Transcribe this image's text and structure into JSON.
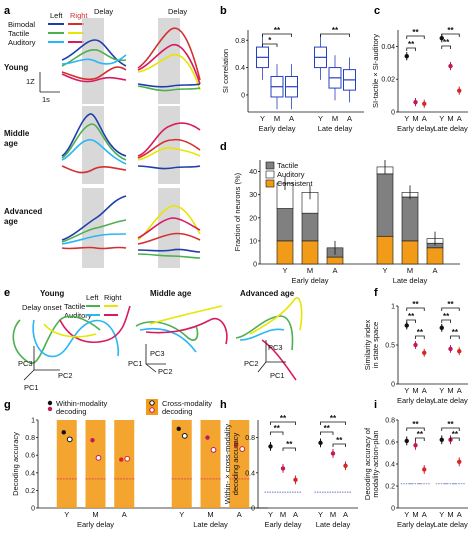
{
  "panels": {
    "a": {
      "label": "a",
      "legend": {
        "left": "Left",
        "right": "Right",
        "rows": [
          "Bimodal",
          "Tactile",
          "Auditory"
        ]
      },
      "delay": "Delay",
      "groups": [
        "Young",
        "Middle\nage",
        "Advanced\nage"
      ],
      "groups_lines": [
        [
          "Young"
        ],
        [
          "Middle",
          "age"
        ],
        [
          "Advanced",
          "age"
        ]
      ],
      "scale_y": "1Z",
      "scale_x": "1s"
    },
    "b": {
      "label": "b",
      "ylabel": "SI correlation"
    },
    "c": {
      "label": "c",
      "ylabel": "SI-tactile × SI-auditory"
    },
    "d": {
      "label": "d",
      "ylabel": "Fraction of neurons (%)"
    },
    "e": {
      "label": "e",
      "titles": [
        "Young",
        "Middle age",
        "Advanced age"
      ],
      "legend": {
        "left": "Left",
        "right": "Right",
        "rows": [
          "Tactile",
          "Auditory"
        ]
      },
      "delay_onset": "Delay onset",
      "pcs": [
        "PC1",
        "PC2",
        "PC3"
      ]
    },
    "f": {
      "label": "f",
      "ylabel": "Similarity index\nin state space",
      "ylabel_lines": [
        "Similarity index",
        "in state space"
      ]
    },
    "g": {
      "label": "g",
      "ylabel": "Decoding accuracy",
      "legend": {
        "within": "Within-modality\ndecoding",
        "within_lines": [
          "Within-modality",
          "decoding"
        ],
        "cross": "Cross-modality\ndecoding",
        "cross_lines": [
          "Cross-modality",
          "decoding"
        ]
      }
    },
    "h": {
      "label": "h",
      "ylabel": "Within- × cross-modality\ndecoding accuracy",
      "ylabel_lines": [
        "Within- × cross-modality",
        "decoding accuracy"
      ]
    },
    "i": {
      "label": "i",
      "ylabel": "Decoding accuracy of\nmodality-action-plan",
      "ylabel_lines": [
        "Decoding accuracy of",
        "modality-action-plan"
      ]
    }
  },
  "stars": "**",
  "star_single": "*",
  "colors": {
    "young": "#111111",
    "middle": "#c2185b",
    "advanced": "#d62728",
    "bimodal": "#1f3fa8",
    "tactile": "#4caf50",
    "auditory": "#29b6f6",
    "right_bimodal": "#d32f2f",
    "right_tactile": "#e6e600",
    "right_auditory": "#d81b60",
    "orange": "#f29b18",
    "tactile_bar": "#808080",
    "box": "#2740c0",
    "box_red": "#e0304a"
  },
  "chart_data": [
    {
      "panel": "b",
      "type": "box",
      "groups": [
        "Early delay",
        "Late delay"
      ],
      "categories": [
        "Y",
        "M",
        "A"
      ],
      "medians": [
        [
          0.55,
          0.12,
          0.12
        ],
        [
          0.55,
          0.25,
          0.22
        ]
      ],
      "ytick_labels": [
        "0",
        "0.4",
        "0.8"
      ],
      "ylim": [
        -0.25,
        0.95
      ]
    },
    {
      "panel": "c",
      "type": "scatter",
      "groups": [
        "Early delay",
        "Late delay"
      ],
      "categories": [
        "Y",
        "M",
        "A"
      ],
      "values": [
        [
          0.034,
          0.006,
          0.005
        ],
        [
          0.045,
          0.028,
          0.013
        ]
      ],
      "ytick_labels": [
        "0",
        "0.02",
        "0.04"
      ],
      "ylim": [
        0,
        0.05
      ]
    },
    {
      "panel": "d",
      "type": "bar",
      "stacked": true,
      "groups": [
        "Early delay",
        "Late delay"
      ],
      "categories": [
        "Y",
        "M",
        "A"
      ],
      "legend": [
        "Tactile",
        "Auditory",
        "Consistent"
      ],
      "series": [
        {
          "name": "Consistent",
          "values": [
            [
              10,
              10,
              3
            ],
            [
              12,
              10,
              7
            ]
          ]
        },
        {
          "name": "Tactile",
          "values": [
            [
              14,
              12,
              4
            ],
            [
              27,
              19,
              2
            ]
          ]
        },
        {
          "name": "Auditory",
          "values": [
            [
              11,
              9,
              0
            ],
            [
              3,
              2,
              2
            ]
          ]
        }
      ],
      "ytick_labels": [
        "0",
        "10",
        "20",
        "30",
        "40"
      ],
      "ylim": [
        0,
        45
      ]
    },
    {
      "panel": "f",
      "type": "scatter",
      "groups": [
        "Early delay",
        "Late delay"
      ],
      "categories": [
        "Y",
        "M",
        "A"
      ],
      "values": [
        [
          0.75,
          0.5,
          0.4
        ],
        [
          0.72,
          0.45,
          0.42
        ]
      ],
      "ytick_labels": [
        "0",
        "0.5",
        "1"
      ],
      "ylim": [
        0,
        1
      ]
    },
    {
      "panel": "g",
      "type": "bar+scatter",
      "groups": [
        "Early delay",
        "Late delay"
      ],
      "categories": [
        "Y",
        "M",
        "A"
      ],
      "within": [
        [
          0.86,
          0.77,
          0.55
        ],
        [
          0.9,
          0.8,
          0.72
        ]
      ],
      "cross": [
        [
          0.78,
          0.57,
          0.56
        ],
        [
          0.82,
          0.66,
          0.67
        ]
      ],
      "ytick_labels": [
        "0",
        "0.2",
        "0.4",
        "0.6",
        "0.8",
        "1"
      ],
      "ylim": [
        0,
        1
      ]
    },
    {
      "panel": "h",
      "type": "scatter",
      "groups": [
        "Early delay",
        "Late delay"
      ],
      "categories": [
        "Y",
        "M",
        "A"
      ],
      "values": [
        [
          0.7,
          0.45,
          0.32
        ],
        [
          0.74,
          0.62,
          0.48
        ]
      ],
      "ytick_labels": [
        "0",
        "0.4",
        "0.8"
      ],
      "ylim": [
        0,
        1
      ]
    },
    {
      "panel": "i",
      "type": "scatter",
      "groups": [
        "Early delay",
        "Late delay"
      ],
      "categories": [
        "Y",
        "M",
        "A"
      ],
      "values": [
        [
          0.61,
          0.57,
          0.35
        ],
        [
          0.62,
          0.62,
          0.42
        ]
      ],
      "ytick_labels": [
        "0",
        "0.2",
        "0.4",
        "0.6",
        "0.8"
      ],
      "ylim": [
        0,
        0.8
      ]
    }
  ]
}
